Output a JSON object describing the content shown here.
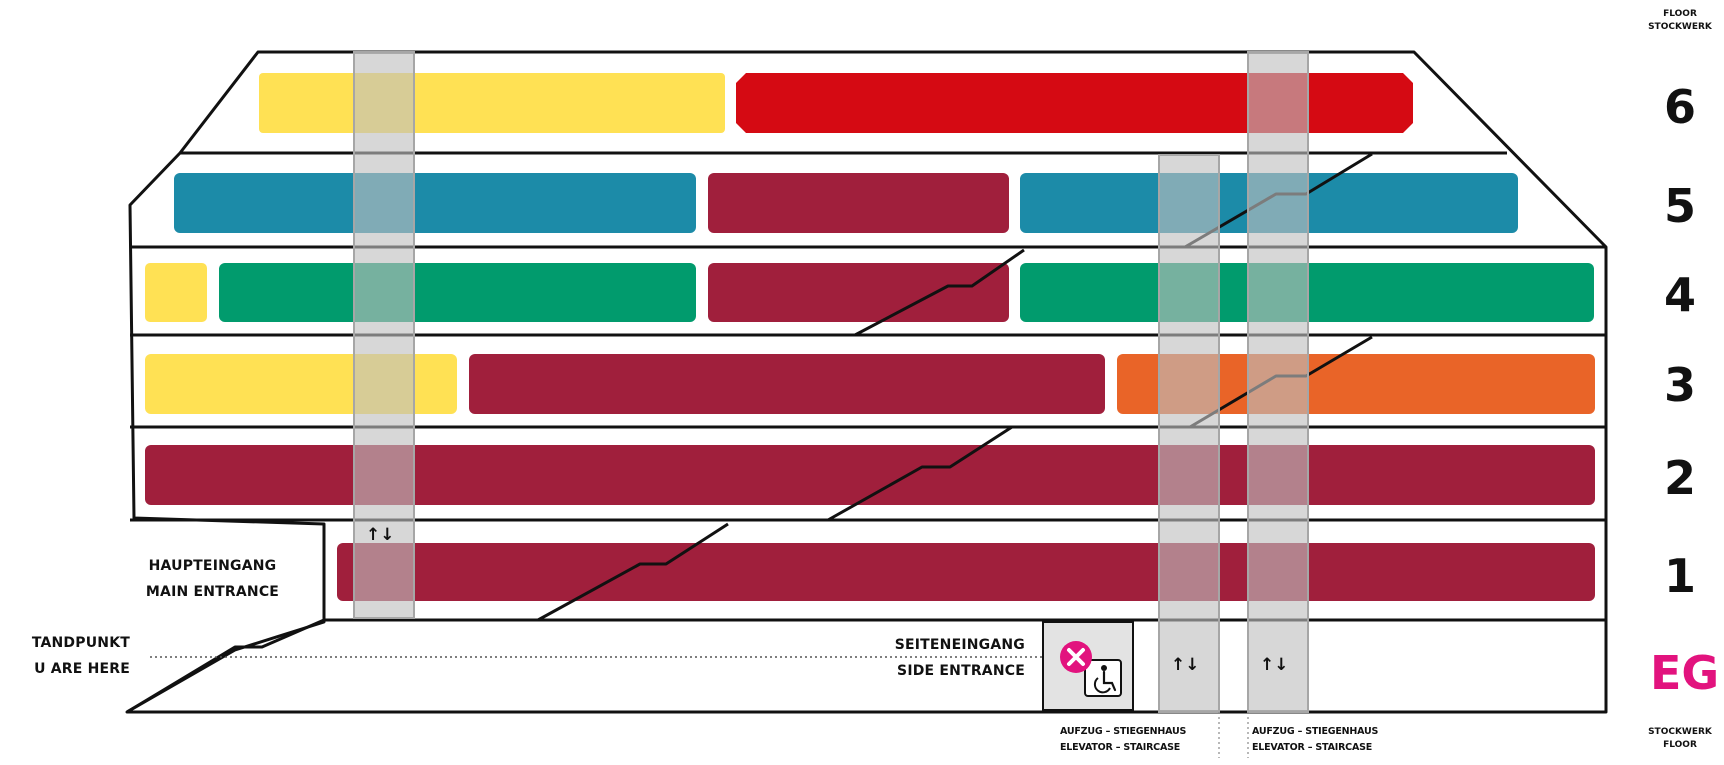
{
  "colors": {
    "yellow": "#FFE154",
    "red": "#D50A13",
    "teal": "#1C8BA8",
    "crimson": "#A01F3C",
    "green": "#019B6D",
    "orange": "#E96428",
    "magenta": "#E2137E",
    "shaft": "#C8C8C8"
  },
  "legend": {
    "header_top": [
      "FLOOR",
      "STOCKWERK"
    ],
    "header_bottom": [
      "STOCKWERK",
      "FLOOR"
    ]
  },
  "floors": [
    {
      "label": "6",
      "bars": [
        "yellow",
        "red"
      ]
    },
    {
      "label": "5",
      "bars": [
        "teal",
        "crimson",
        "teal"
      ]
    },
    {
      "label": "4",
      "bars": [
        "yellow",
        "green",
        "crimson",
        "green"
      ]
    },
    {
      "label": "3",
      "bars": [
        "yellow",
        "crimson",
        "orange"
      ]
    },
    {
      "label": "2",
      "bars": [
        "crimson"
      ]
    },
    {
      "label": "1",
      "bars": [
        "crimson"
      ]
    },
    {
      "label": "EG",
      "bars": []
    }
  ],
  "entrances": {
    "main": {
      "de": "HAUPTEINGANG",
      "en": "MAIN ENTRANCE"
    },
    "side": {
      "de": "SEITENEINGANG",
      "en": "SIDE ENTRANCE"
    },
    "you_are_here": {
      "de": "TANDPUNKT",
      "en": "U ARE HERE"
    }
  },
  "shafts": [
    {
      "de": "AUFZUG – STIEGENHAUS",
      "en": "ELEVATOR – STAIRCASE"
    },
    {
      "de": "AUFZUG – STIEGENHAUS",
      "en": "ELEVATOR – STAIRCASE"
    }
  ],
  "arrows": "↑↓",
  "icons": [
    "wheelchair-icon",
    "you-are-here-marker-icon",
    "elevator-arrows-icon"
  ]
}
